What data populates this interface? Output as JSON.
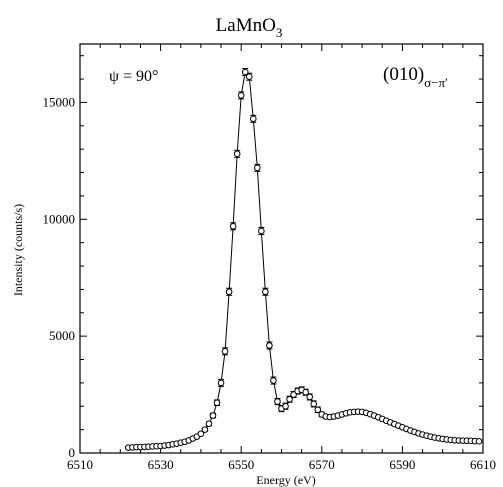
{
  "chart_data": {
    "type": "scatter",
    "title_main": "LaMnO",
    "title_sub": "3",
    "xlabel": "Energy (eV)",
    "ylabel": "Intensity (counts/s)",
    "xlim": [
      6510,
      6610
    ],
    "ylim": [
      0,
      17500
    ],
    "x_ticks": [
      6510,
      6530,
      6550,
      6570,
      6590,
      6610
    ],
    "x_tick_labels": [
      "6510",
      "6530",
      "6550",
      "6570",
      "6590",
      "6610"
    ],
    "y_ticks": [
      0,
      5000,
      10000,
      15000
    ],
    "y_tick_labels": [
      "0",
      "5000",
      "10000",
      "15000"
    ],
    "grid": false,
    "annotations": {
      "angle_label": "ψ = 90°",
      "reflection_main": "(010)",
      "reflection_sub": "σ−π′"
    },
    "series": [
      {
        "marker": "open-circle",
        "line": true,
        "error_bars": true,
        "x": [
          6522,
          6523,
          6524,
          6525,
          6526,
          6527,
          6528,
          6529,
          6530,
          6531,
          6532,
          6533,
          6534,
          6535,
          6536,
          6537,
          6538,
          6539,
          6540,
          6541,
          6542,
          6543,
          6544,
          6545,
          6546,
          6547,
          6548,
          6549,
          6550,
          6551,
          6552,
          6553,
          6554,
          6555,
          6556,
          6557,
          6558,
          6559,
          6560,
          6561,
          6562,
          6563,
          6564,
          6565,
          6566,
          6567,
          6568,
          6569,
          6570,
          6571,
          6572,
          6573,
          6574,
          6575,
          6576,
          6577,
          6578,
          6579,
          6580,
          6581,
          6582,
          6583,
          6584,
          6585,
          6586,
          6587,
          6588,
          6589,
          6590,
          6591,
          6592,
          6593,
          6594,
          6595,
          6596,
          6597,
          6598,
          6599,
          6600,
          6601,
          6602,
          6603,
          6604,
          6605,
          6606,
          6607,
          6608,
          6609
        ],
        "y": [
          230,
          240,
          250,
          255,
          260,
          270,
          280,
          290,
          300,
          320,
          340,
          370,
          400,
          440,
          480,
          540,
          620,
          700,
          820,
          1000,
          1250,
          1600,
          2150,
          3000,
          4350,
          6900,
          9700,
          12800,
          15300,
          16300,
          16100,
          14300,
          12200,
          9500,
          6900,
          4600,
          3100,
          2200,
          1900,
          2000,
          2300,
          2500,
          2650,
          2700,
          2600,
          2400,
          2100,
          1850,
          1650,
          1560,
          1540,
          1560,
          1600,
          1650,
          1700,
          1740,
          1760,
          1770,
          1760,
          1720,
          1660,
          1600,
          1530,
          1460,
          1380,
          1310,
          1240,
          1170,
          1100,
          1030,
          960,
          900,
          840,
          790,
          740,
          700,
          660,
          630,
          600,
          580,
          560,
          545,
          535,
          530,
          525,
          520,
          510,
          500
        ],
        "yerr": [
          40,
          40,
          40,
          40,
          40,
          40,
          40,
          40,
          40,
          40,
          40,
          40,
          40,
          40,
          40,
          40,
          40,
          40,
          50,
          60,
          80,
          100,
          120,
          150,
          150,
          150,
          150,
          150,
          150,
          150,
          150,
          150,
          150,
          150,
          150,
          150,
          150,
          130,
          130,
          130,
          130,
          130,
          130,
          130,
          130,
          130,
          130,
          120,
          100,
          80,
          60,
          60,
          60,
          60,
          60,
          60,
          60,
          60,
          60,
          60,
          60,
          60,
          60,
          60,
          60,
          60,
          60,
          60,
          60,
          60,
          60,
          60,
          60,
          60,
          60,
          60,
          60,
          60,
          60,
          60,
          60,
          60,
          60,
          60,
          60,
          60,
          60,
          60
        ]
      }
    ]
  }
}
